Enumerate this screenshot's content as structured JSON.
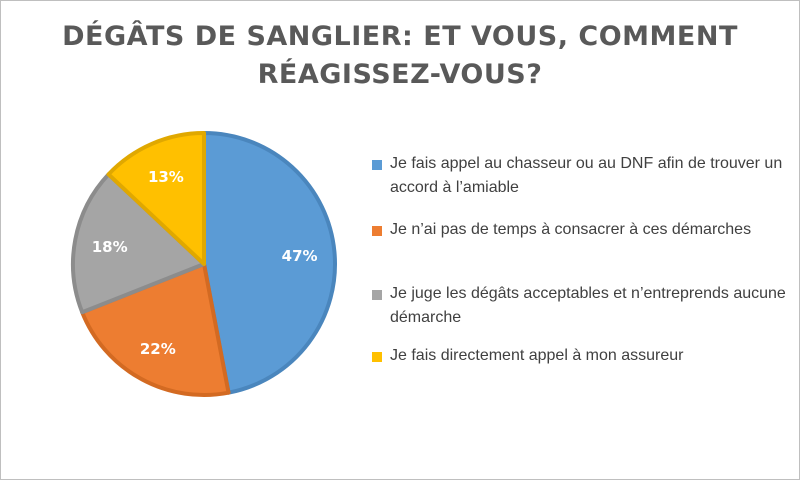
{
  "chart_data": {
    "type": "pie",
    "title": "DÉGÂTS DE SANGLIER: ET VOUS, COMMENT RÉAGISSEZ-VOUS?",
    "title_lines": [
      "DÉGÂTS DE SANGLIER: ET VOUS, COMMENT",
      "RÉAGISSEZ-VOUS?"
    ],
    "legend_position": "right",
    "slices": [
      {
        "label": "Je fais appel au chasseur ou au DNF afin de trouver un accord à l’amiable",
        "value": 47,
        "value_label": "47%",
        "color": "#5b9bd5",
        "edge": "#4a86bd"
      },
      {
        "label": "Je n’ai pas de temps à consacrer à ces démarches",
        "value": 22,
        "value_label": "22%",
        "color": "#ed7d31",
        "edge": "#d36a22"
      },
      {
        "label": "Je juge les dégâts acceptables et n’entreprends aucune démarche",
        "value": 18,
        "value_label": "18%",
        "color": "#a5a5a5",
        "edge": "#8c8c8c"
      },
      {
        "label": "Je fais directement appel à mon assureur",
        "value": 13,
        "value_label": "13%",
        "color": "#ffc000",
        "edge": "#e0a800"
      }
    ]
  }
}
